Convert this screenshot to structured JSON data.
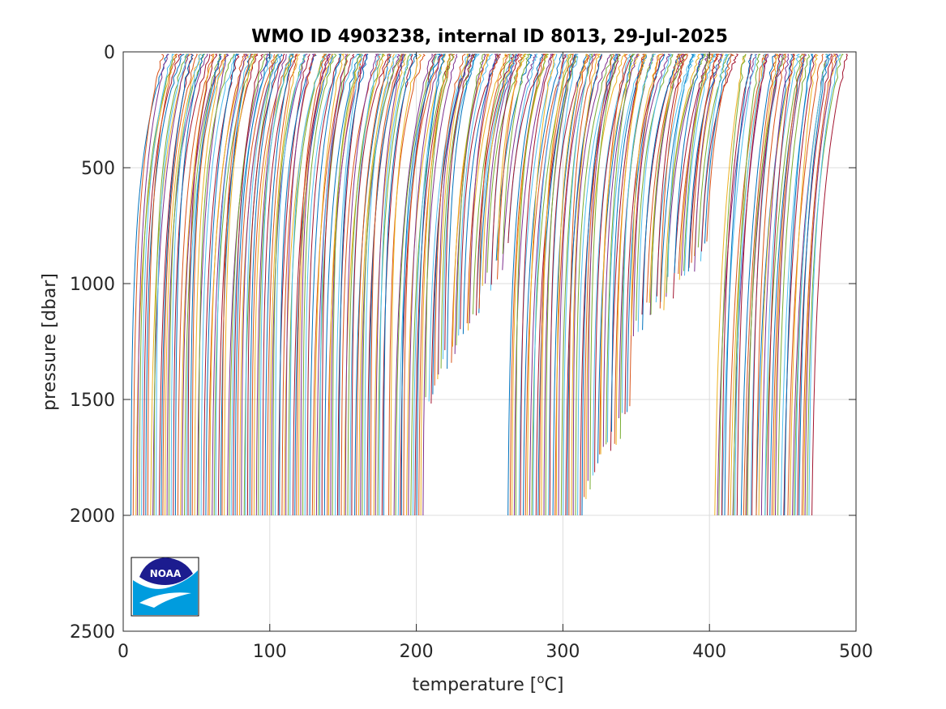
{
  "chart_data": {
    "type": "line",
    "title": "WMO ID 4903238, internal ID 8013, 29-Jul-2025",
    "xlabel_main": "temperature [",
    "xlabel_unit_sup": "o",
    "xlabel_unit_rest": "C]",
    "ylabel": "pressure [dbar]",
    "xlim": [
      0,
      500
    ],
    "ylim": [
      0,
      2500
    ],
    "y_reversed": true,
    "grid": true,
    "xticks": [
      0,
      100,
      200,
      300,
      400,
      500
    ],
    "yticks": [
      0,
      500,
      1000,
      1500,
      2000,
      2500
    ],
    "xtick_labels": [
      "0",
      "100",
      "200",
      "300",
      "400",
      "500"
    ],
    "ytick_labels": [
      "0",
      "500",
      "1000",
      "1500",
      "2000",
      "2500"
    ],
    "profile_offset_step": 1.45,
    "series_colors": [
      "#0072BD",
      "#D95319",
      "#EDB120",
      "#7E2F8E",
      "#77AC30",
      "#4DBEEE",
      "#A2142F"
    ],
    "profile_groups": [
      {
        "x_start": 5,
        "x_end": 178,
        "bottom_pressure": 2000,
        "surface_temp_offset": 24,
        "thermocline_depth": 450
      },
      {
        "x_start": 181,
        "x_end": 204,
        "bottom_pressure": 2000,
        "surface_temp_offset": 24,
        "thermocline_depth": 450,
        "short_profiles": [
          {
            "x": 190,
            "bottom_pressure": 1600
          },
          {
            "x": 195,
            "bottom_pressure": 1550
          },
          {
            "x": 200,
            "bottom_pressure": 1480
          }
        ]
      },
      {
        "x_start": 206,
        "x_end": 260,
        "bottom_pressure_start": 1500,
        "bottom_pressure_end": 850,
        "surface_temp_offset": 24,
        "thermocline_depth": 400
      },
      {
        "x_start": 262,
        "x_end": 313,
        "bottom_pressure": 2000,
        "surface_temp_offset": 24,
        "thermocline_depth": 450
      },
      {
        "x_start": 314,
        "x_end": 345,
        "bottom_pressure_start": 1900,
        "bottom_pressure_end": 1550,
        "surface_temp_offset": 24,
        "thermocline_depth": 450
      },
      {
        "x_start": 346,
        "x_end": 396,
        "bottom_pressure_start": 1200,
        "bottom_pressure_end": 850,
        "surface_temp_offset": 24,
        "thermocline_depth": 400
      },
      {
        "x_start": 402,
        "x_end": 468,
        "bottom_pressure": 2000,
        "surface_temp_offset": 24,
        "thermocline_depth": 700
      }
    ],
    "logo": {
      "text": "NOAA"
    }
  }
}
